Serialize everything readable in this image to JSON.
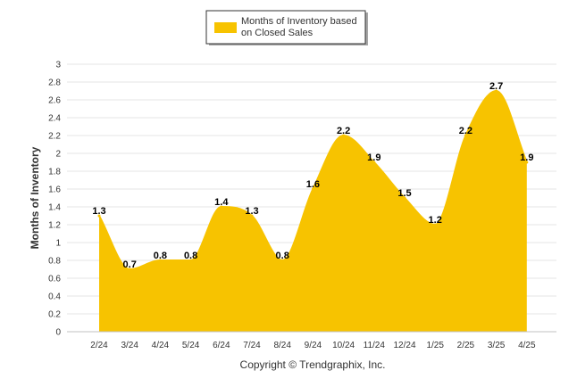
{
  "legend": {
    "line1": "Months of Inventory based",
    "line2": "on Closed Sales"
  },
  "footer": {
    "copyright": "Copyright © Trendgraphix, Inc."
  },
  "colors": {
    "series": "#F7C300",
    "grid": "#E6E6E6"
  },
  "chart_data": {
    "type": "area",
    "title": "",
    "xlabel": "",
    "ylabel": "Months of Inventory",
    "categories": [
      "2/24",
      "3/24",
      "4/24",
      "5/24",
      "6/24",
      "7/24",
      "8/24",
      "9/24",
      "10/24",
      "11/24",
      "12/24",
      "1/25",
      "2/25",
      "3/25",
      "4/25"
    ],
    "series": [
      {
        "name": "Months of Inventory based on Closed Sales",
        "values": [
          1.3,
          0.7,
          0.8,
          0.8,
          1.4,
          1.3,
          0.8,
          1.6,
          2.2,
          1.9,
          1.5,
          1.2,
          2.2,
          2.7,
          1.9
        ],
        "labels": [
          "1.3",
          "0.7",
          "0.8",
          "0.8",
          "1.4",
          "1.3",
          "0.8",
          "1.6",
          "2.2",
          "1.9",
          "1.5",
          "1.2",
          "2.2",
          "2.7",
          "1.9"
        ]
      }
    ],
    "y_ticks": [
      "0",
      "0.2",
      "0.4",
      "0.6",
      "0.8",
      "1",
      "1.2",
      "1.4",
      "1.6",
      "1.8",
      "2",
      "2.2",
      "2.4",
      "2.6",
      "2.8",
      "3"
    ],
    "ylim": [
      0,
      3
    ],
    "grid": true,
    "legend_position": "top-center"
  }
}
